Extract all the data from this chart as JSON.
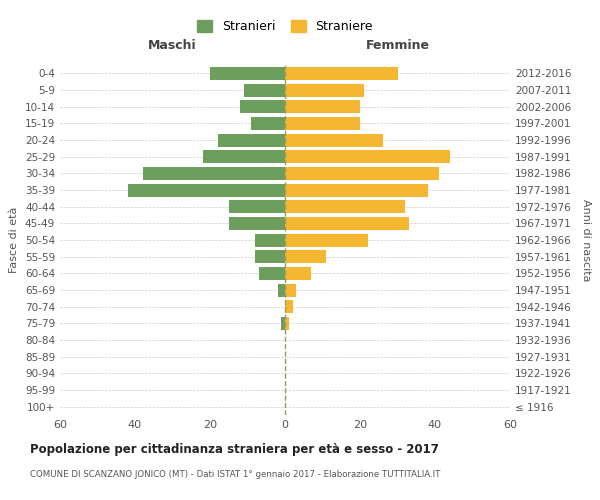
{
  "age_groups": [
    "100+",
    "95-99",
    "90-94",
    "85-89",
    "80-84",
    "75-79",
    "70-74",
    "65-69",
    "60-64",
    "55-59",
    "50-54",
    "45-49",
    "40-44",
    "35-39",
    "30-34",
    "25-29",
    "20-24",
    "15-19",
    "10-14",
    "5-9",
    "0-4"
  ],
  "birth_years": [
    "≤ 1916",
    "1917-1921",
    "1922-1926",
    "1927-1931",
    "1932-1936",
    "1937-1941",
    "1942-1946",
    "1947-1951",
    "1952-1956",
    "1957-1961",
    "1962-1966",
    "1967-1971",
    "1972-1976",
    "1977-1981",
    "1982-1986",
    "1987-1991",
    "1992-1996",
    "1997-2001",
    "2002-2006",
    "2007-2011",
    "2012-2016"
  ],
  "males": [
    0,
    0,
    0,
    0,
    0,
    1,
    0,
    2,
    7,
    8,
    8,
    15,
    15,
    42,
    38,
    22,
    18,
    9,
    12,
    11,
    20
  ],
  "females": [
    0,
    0,
    0,
    0,
    0,
    1,
    2,
    3,
    7,
    11,
    22,
    33,
    32,
    38,
    41,
    44,
    26,
    20,
    20,
    21,
    30
  ],
  "male_color": "#6e9e5e",
  "female_color": "#f5b731",
  "background_color": "#ffffff",
  "grid_color": "#cccccc",
  "title": "Popolazione per cittadinanza straniera per età e sesso - 2017",
  "subtitle": "COMUNE DI SCANZANO JONICO (MT) - Dati ISTAT 1° gennaio 2017 - Elaborazione TUTTITALIA.IT",
  "xlabel_left": "Maschi",
  "xlabel_right": "Femmine",
  "ylabel_left": "Fasce di età",
  "ylabel_right": "Anni di nascita",
  "legend_male": "Stranieri",
  "legend_female": "Straniere",
  "xlim": 60,
  "dashed_line_color": "#999966"
}
